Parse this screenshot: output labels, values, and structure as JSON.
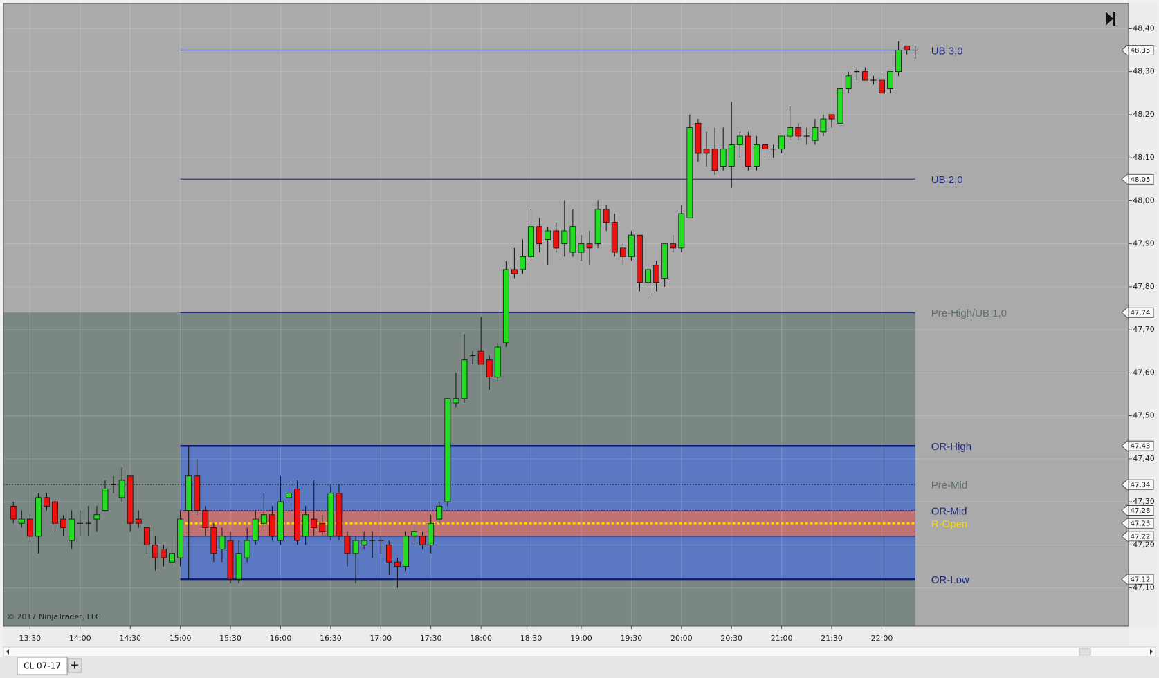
{
  "chart_data": {
    "type": "candlestick",
    "categories": [
      "13:20",
      "13:25",
      "13:30",
      "13:35",
      "13:40",
      "13:45",
      "13:50",
      "13:55",
      "14:00",
      "14:05",
      "14:10",
      "14:15",
      "14:20",
      "14:25",
      "14:30",
      "14:35",
      "14:40",
      "14:45",
      "14:50",
      "14:55",
      "15:00",
      "15:05",
      "15:10",
      "15:15",
      "15:20",
      "15:25",
      "15:30",
      "15:35",
      "15:40",
      "15:45",
      "15:50",
      "15:55",
      "16:00",
      "16:05",
      "16:10",
      "16:15",
      "16:20",
      "16:25",
      "16:30",
      "16:35",
      "16:40",
      "16:45",
      "16:50",
      "16:55",
      "17:00",
      "17:05",
      "17:10",
      "17:15",
      "17:20",
      "17:25",
      "17:30",
      "17:35",
      "17:40",
      "17:45",
      "17:50",
      "17:55",
      "18:00",
      "18:05",
      "18:10",
      "18:15",
      "18:20",
      "18:25",
      "18:30",
      "18:35",
      "18:40",
      "18:45",
      "18:50",
      "18:55",
      "19:00",
      "19:05",
      "19:10",
      "19:15",
      "19:20",
      "19:25",
      "19:30",
      "19:35",
      "19:40",
      "19:45",
      "19:50",
      "19:55",
      "20:00",
      "20:05",
      "20:10",
      "20:15",
      "20:20",
      "20:25",
      "20:30",
      "20:35",
      "20:40",
      "20:45",
      "20:50",
      "20:55",
      "21:00",
      "21:05",
      "21:10",
      "21:15",
      "21:20",
      "21:25",
      "21:30",
      "21:35",
      "21:40",
      "21:45",
      "21:50",
      "21:55",
      "22:00",
      "22:05",
      "22:10",
      "22:15",
      "22:20"
    ],
    "open": [
      47.29,
      47.25,
      47.26,
      47.22,
      47.31,
      47.3,
      47.26,
      47.21,
      47.25,
      47.25,
      47.26,
      47.28,
      47.34,
      47.31,
      47.36,
      47.26,
      47.24,
      47.2,
      47.19,
      47.16,
      47.17,
      47.28,
      47.36,
      47.28,
      47.24,
      47.19,
      47.21,
      47.12,
      47.17,
      47.21,
      47.25,
      47.27,
      47.21,
      47.31,
      47.33,
      47.22,
      47.26,
      47.25,
      47.22,
      47.32,
      47.22,
      47.18,
      47.2,
      47.21,
      47.21,
      47.2,
      47.16,
      47.15,
      47.22,
      47.22,
      47.2,
      47.26,
      47.3,
      47.53,
      47.54,
      47.64,
      47.65,
      47.63,
      47.59,
      47.67,
      47.84,
      47.84,
      47.87,
      47.94,
      47.91,
      47.93,
      47.9,
      47.88,
      47.88,
      47.9,
      47.9,
      47.98,
      47.95,
      47.89,
      47.87,
      47.92,
      47.81,
      47.85,
      47.82,
      47.9,
      47.89,
      47.96,
      48.18,
      48.12,
      48.12,
      48.08,
      48.08,
      48.13,
      48.15,
      48.08,
      48.13,
      48.12,
      48.12,
      48.15,
      48.17,
      48.15,
      48.14,
      48.16,
      48.2,
      48.18,
      48.26,
      48.3,
      48.3,
      48.28,
      48.28,
      48.26,
      48.3,
      48.36,
      48.35
    ],
    "high": [
      47.3,
      47.28,
      47.27,
      47.32,
      47.32,
      47.31,
      47.27,
      47.28,
      47.28,
      47.29,
      47.29,
      47.35,
      47.36,
      47.38,
      47.36,
      47.28,
      47.24,
      47.22,
      47.2,
      47.22,
      47.28,
      47.43,
      47.4,
      47.29,
      47.25,
      47.24,
      47.23,
      47.21,
      47.24,
      47.28,
      47.32,
      47.29,
      47.36,
      47.34,
      47.35,
      47.29,
      47.35,
      47.27,
      47.34,
      47.34,
      47.23,
      47.22,
      47.23,
      47.23,
      47.22,
      47.21,
      47.17,
      47.23,
      47.25,
      47.23,
      47.27,
      47.3,
      47.54,
      47.6,
      47.69,
      47.65,
      47.73,
      47.64,
      47.67,
      47.86,
      47.89,
      47.91,
      47.98,
      47.96,
      47.94,
      47.95,
      48.0,
      47.98,
      47.92,
      47.93,
      48.0,
      47.99,
      47.97,
      47.9,
      47.93,
      47.92,
      47.85,
      47.86,
      47.9,
      47.92,
      47.99,
      48.2,
      48.19,
      48.16,
      48.17,
      48.17,
      48.23,
      48.16,
      48.16,
      48.15,
      48.13,
      48.13,
      48.15,
      48.22,
      48.18,
      48.17,
      48.19,
      48.2,
      48.2,
      48.26,
      48.3,
      48.31,
      48.31,
      48.29,
      48.29,
      48.3,
      48.37,
      48.36,
      48.36
    ],
    "low": [
      47.25,
      47.24,
      47.21,
      47.18,
      47.28,
      47.23,
      47.22,
      47.19,
      47.22,
      47.22,
      47.23,
      47.28,
      47.32,
      47.3,
      47.23,
      47.24,
      47.18,
      47.14,
      47.15,
      47.15,
      47.15,
      47.12,
      47.27,
      47.22,
      47.16,
      47.16,
      47.11,
      47.11,
      47.16,
      47.2,
      47.24,
      47.21,
      47.2,
      47.29,
      47.2,
      47.2,
      47.22,
      47.22,
      47.21,
      47.21,
      47.15,
      47.11,
      47.19,
      47.17,
      47.18,
      47.13,
      47.1,
      47.14,
      47.2,
      47.19,
      47.18,
      47.25,
      47.29,
      47.52,
      47.53,
      47.62,
      47.62,
      47.56,
      47.58,
      47.66,
      47.82,
      47.83,
      47.86,
      47.88,
      47.85,
      47.88,
      47.87,
      47.87,
      47.86,
      47.85,
      47.89,
      47.93,
      47.87,
      47.85,
      47.86,
      47.79,
      47.78,
      47.79,
      47.8,
      47.88,
      47.88,
      47.96,
      48.09,
      48.08,
      48.06,
      48.07,
      48.03,
      48.1,
      48.07,
      48.07,
      48.1,
      48.1,
      48.11,
      48.14,
      48.14,
      48.13,
      48.13,
      48.15,
      48.17,
      48.18,
      48.25,
      48.28,
      48.28,
      48.27,
      48.25,
      48.25,
      48.29,
      48.34,
      48.33
    ],
    "close": [
      47.26,
      47.26,
      47.22,
      47.31,
      47.29,
      47.25,
      47.24,
      47.26,
      47.25,
      47.25,
      47.27,
      47.33,
      47.34,
      47.35,
      47.25,
      47.25,
      47.2,
      47.17,
      47.17,
      47.18,
      47.26,
      47.36,
      47.28,
      47.24,
      47.18,
      47.22,
      47.12,
      47.18,
      47.21,
      47.26,
      47.27,
      47.22,
      47.3,
      47.32,
      47.21,
      47.27,
      47.24,
      47.23,
      47.32,
      47.22,
      47.18,
      47.21,
      47.21,
      47.21,
      47.21,
      47.16,
      47.15,
      47.22,
      47.23,
      47.2,
      47.25,
      47.29,
      47.54,
      47.54,
      47.63,
      47.64,
      47.62,
      47.59,
      47.66,
      47.84,
      47.83,
      47.87,
      47.94,
      47.9,
      47.93,
      47.89,
      47.93,
      47.94,
      47.9,
      47.89,
      47.98,
      47.95,
      47.88,
      47.87,
      47.92,
      47.81,
      47.84,
      47.81,
      47.9,
      47.89,
      47.97,
      48.17,
      48.11,
      48.11,
      48.07,
      48.12,
      48.13,
      48.15,
      48.08,
      48.13,
      48.12,
      48.12,
      48.15,
      48.17,
      48.15,
      48.15,
      48.17,
      48.19,
      48.19,
      48.26,
      48.29,
      48.3,
      48.28,
      48.28,
      48.25,
      48.3,
      48.35,
      48.35,
      48.35
    ],
    "up_color": "#22dd22",
    "down_color": "#ee1111",
    "ylim": [
      47.011,
      48.458
    ],
    "yticks": [
      {
        "value": 47.1,
        "label": "47,10"
      },
      {
        "value": 47.2,
        "label": "47,20"
      },
      {
        "value": 47.3,
        "label": "47,30"
      },
      {
        "value": 47.4,
        "label": "47,40"
      },
      {
        "value": 47.5,
        "label": "47,50"
      },
      {
        "value": 47.6,
        "label": "47,60"
      },
      {
        "value": 47.7,
        "label": "47,70"
      },
      {
        "value": 47.8,
        "label": "47,80"
      },
      {
        "value": 47.9,
        "label": "47,90"
      },
      {
        "value": 48.0,
        "label": "48,00"
      },
      {
        "value": 48.1,
        "label": "48,10"
      },
      {
        "value": 48.2,
        "label": "48,20"
      },
      {
        "value": 48.3,
        "label": "48,30"
      },
      {
        "value": 48.4,
        "label": "48,40"
      }
    ],
    "xticks": [
      "13:30",
      "14:00",
      "14:30",
      "15:00",
      "15:30",
      "16:00",
      "16:30",
      "17:00",
      "17:30",
      "18:00",
      "18:30",
      "19:00",
      "19:30",
      "20:00",
      "20:30",
      "21:00",
      "21:30",
      "22:00"
    ],
    "grid": true,
    "bands": [
      {
        "high": 47.74,
        "color": "#7b8783",
        "start": null
      },
      {
        "low": 47.12,
        "high": 47.43,
        "color": "#5b78c2",
        "start": "15:00"
      },
      {
        "low": 47.22,
        "high": 47.28,
        "color": "#c07272",
        "start": "15:00"
      }
    ],
    "levels": [
      {
        "name": "UB 3,0",
        "price": {
          "value": 48.35,
          "label": "48,35"
        },
        "color": "#2b3890",
        "text_color": "#1d2a86",
        "start": "15:00",
        "style": "solid"
      },
      {
        "name": "UB 2,0",
        "price": {
          "value": 48.05,
          "label": "48,05"
        },
        "color": "#2b3890",
        "text_color": "#1d2a86",
        "start": "15:00",
        "style": "solid"
      },
      {
        "name": "Pre-High/UB 1,0",
        "price": {
          "value": 47.74,
          "label": "47,74"
        },
        "color": "#1a2680",
        "text_color": "#5e6e6b",
        "start": "15:00",
        "style": "solid"
      },
      {
        "name": "OR-High",
        "price": {
          "value": 47.43,
          "label": "47,43"
        },
        "color": "#121c78",
        "text_color": "#1d2a86",
        "start": "15:00",
        "style": "thick"
      },
      {
        "name": "Pre-Mid",
        "price": {
          "value": 47.34,
          "label": "47,34"
        },
        "color": "#333333",
        "text_color": "#5e6e6b",
        "start": null,
        "style": "dotted"
      },
      {
        "name": "OR-Mid",
        "price": {
          "value": 47.28,
          "label": "47,28"
        },
        "color": "#1a2680",
        "text_color": "#1d2a86",
        "start": "15:00",
        "style": "dotted"
      },
      {
        "name": "R-Open",
        "price": {
          "value": 47.25,
          "label": "47,25"
        },
        "color": "#ffd700",
        "text_color": "#ffd700",
        "start": "15:00",
        "style": "dotted-thick"
      },
      {
        "name": null,
        "price": {
          "value": 47.22,
          "label": "47,22"
        },
        "color": "#1a2680",
        "text_color": "#1d2a86",
        "start": "15:00",
        "style": "solid"
      },
      {
        "name": "OR-Low",
        "price": {
          "value": 47.12,
          "label": "47,12"
        },
        "color": "#121c78",
        "text_color": "#1d2a86",
        "start": "15:00",
        "style": "thick"
      }
    ],
    "copyright": "© 2017 NinjaTrader, LLC"
  },
  "tabs": {
    "items": [
      "CL 07-17"
    ],
    "add": "+"
  }
}
